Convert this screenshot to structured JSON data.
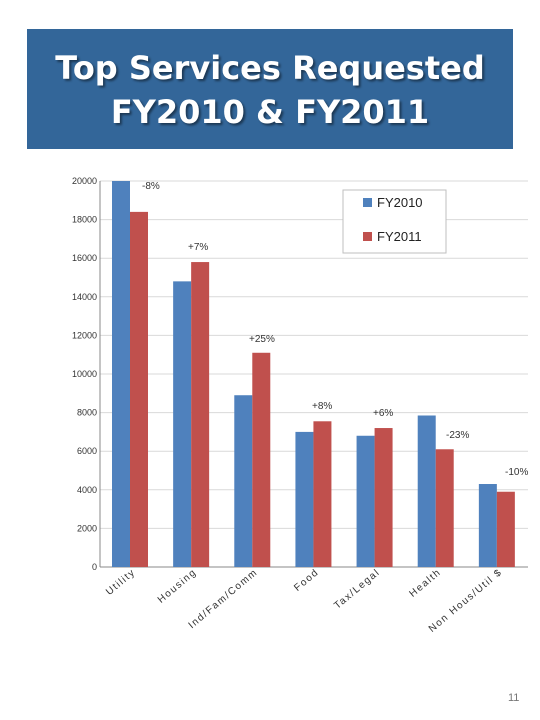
{
  "title": {
    "line1": "Top Services Requested",
    "line2": "FY2010 & FY2011"
  },
  "page_number": "11",
  "colors": {
    "title_bg": "#336699",
    "title_text": "#ffffff",
    "fy2010": "#4f81bd",
    "fy2011": "#c0504d"
  },
  "chart_data": {
    "type": "bar",
    "categories": [
      "Utility",
      "Housing",
      "Ind/Fam/Comm",
      "Food",
      "Tax/Legal",
      "Health",
      "Non Hous/Util $"
    ],
    "series": [
      {
        "name": "FY2010",
        "color": "#4f81bd",
        "values": [
          20000,
          14800,
          8900,
          7000,
          6800,
          7850,
          4300
        ]
      },
      {
        "name": "FY2011",
        "color": "#c0504d",
        "values": [
          18400,
          15800,
          11100,
          7550,
          7200,
          6100,
          3900
        ]
      }
    ],
    "annotations": [
      "-8%",
      "+7%",
      "+25%",
      "+8%",
      "+6%",
      "-23%",
      "-10%"
    ],
    "ylim": [
      0,
      20000
    ],
    "yticks": [
      0,
      2000,
      4000,
      6000,
      8000,
      10000,
      12000,
      14000,
      16000,
      18000,
      20000
    ],
    "grid": true,
    "legend": "top-right",
    "title": "",
    "xlabel": "",
    "ylabel": ""
  }
}
